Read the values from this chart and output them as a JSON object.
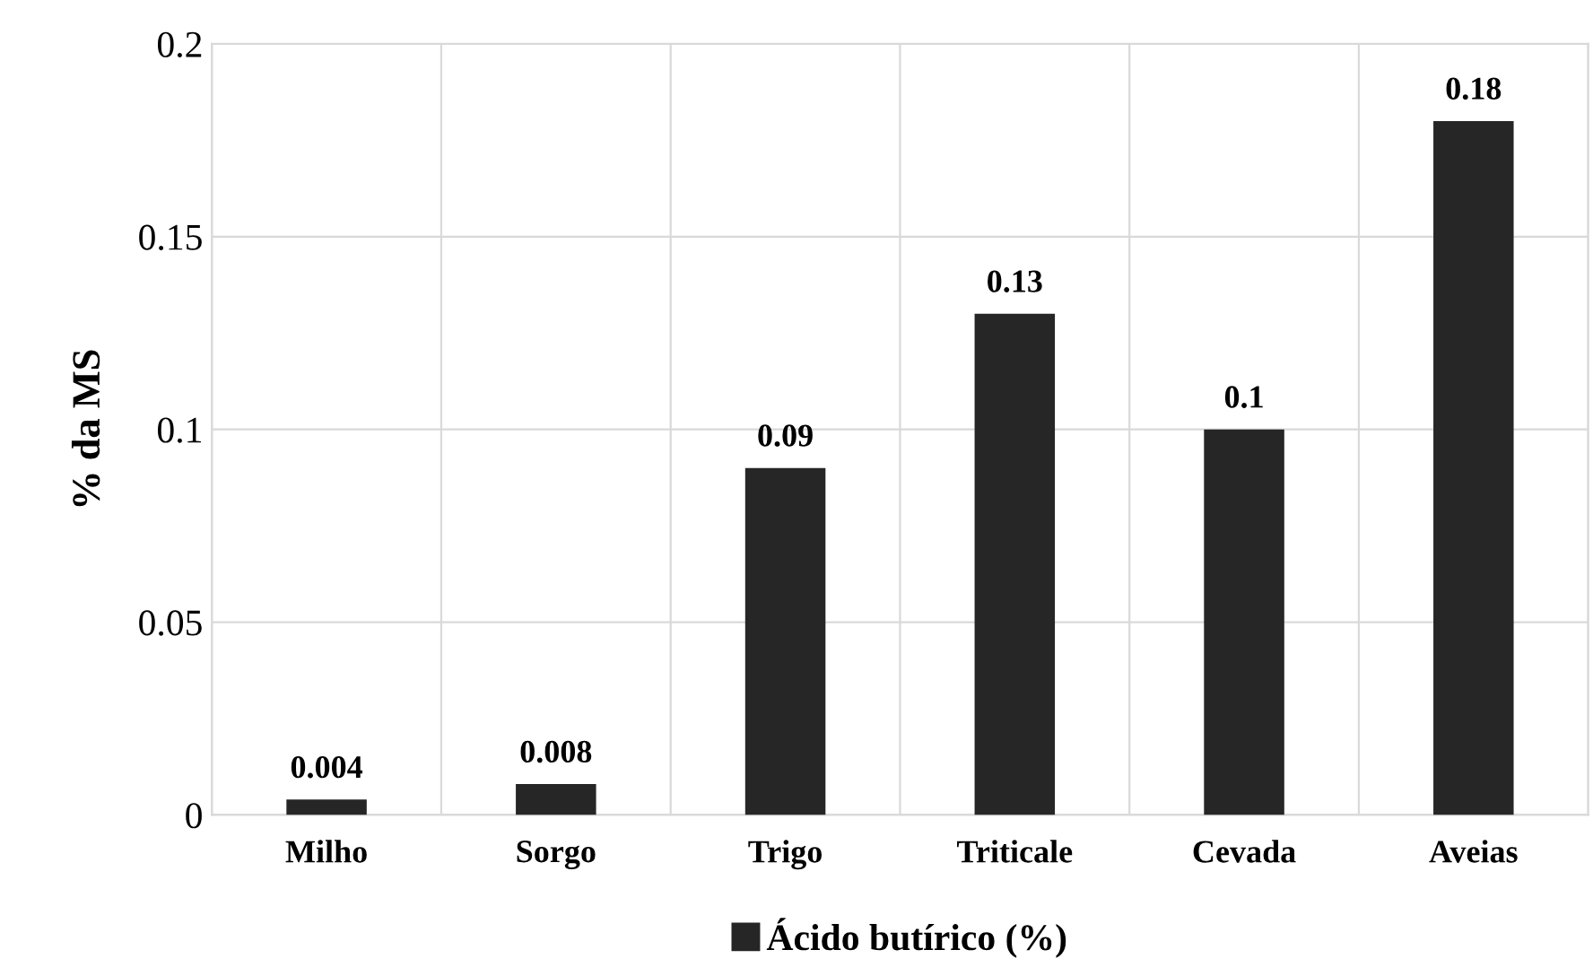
{
  "chart_data": {
    "type": "bar",
    "ylabel": "% da MS",
    "categories": [
      "Milho",
      "Sorgo",
      "Trigo",
      "Triticale",
      "Cevada",
      "Aveias"
    ],
    "series": [
      {
        "name": "Ácido butírico (%)",
        "color": "#262626",
        "values": [
          0.004,
          0.008,
          0.09,
          0.13,
          0.1,
          0.18
        ]
      }
    ],
    "ylim": [
      0,
      0.2
    ],
    "yticks": [
      0,
      0.05,
      0.1,
      0.15,
      0.2
    ],
    "grid": true,
    "data_labels": true,
    "legend": "bottom"
  }
}
